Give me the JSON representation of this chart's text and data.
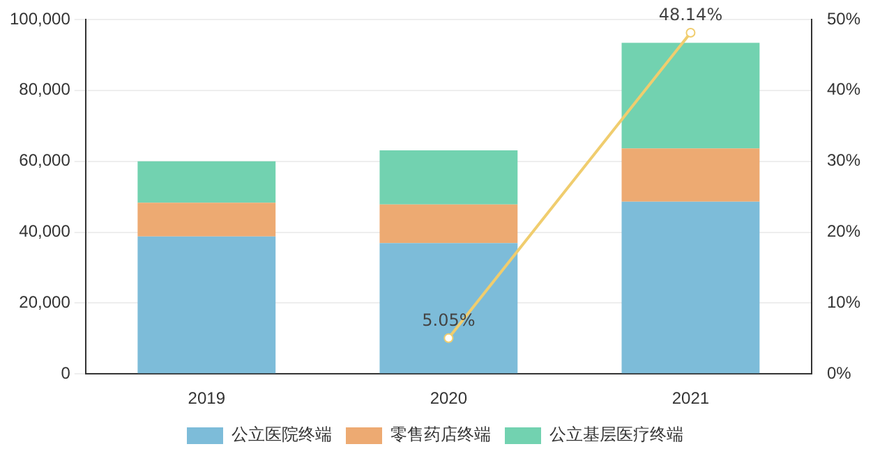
{
  "chart_data": {
    "type": "bar",
    "stacked": true,
    "categories": [
      "2019",
      "2020",
      "2021"
    ],
    "series": [
      {
        "name": "公立医院终端",
        "color": "#7dbcd9",
        "values": [
          38800,
          36900,
          48600
        ]
      },
      {
        "name": "零售药店终端",
        "color": "#edaa72",
        "values": [
          9500,
          10900,
          15000
        ]
      },
      {
        "name": "公立基层医疗终端",
        "color": "#72d2b0",
        "values": [
          11700,
          15300,
          29800
        ]
      },
      {
        "type": "line",
        "axis": "y2",
        "color": "#f0cd6e",
        "values": [
          null,
          5.05,
          48.14
        ],
        "value_labels": [
          null,
          "5.05%",
          "48.14%"
        ]
      }
    ],
    "ylim": [
      0,
      100000
    ],
    "yticks": [
      0,
      {
        "value": 20000,
        "label": "20,000"
      },
      {
        "value": 40000,
        "label": "40,000"
      },
      {
        "value": 60000,
        "label": "60,000"
      },
      {
        "value": 80000,
        "label": "80,000"
      },
      {
        "value": 100000,
        "label": "100,000"
      }
    ],
    "y2lim": [
      0,
      50
    ],
    "y2ticks": [
      {
        "value": 0,
        "label": "0%"
      },
      {
        "value": 10,
        "label": "10%"
      },
      {
        "value": 20,
        "label": "20%"
      },
      {
        "value": 30,
        "label": "30%"
      },
      {
        "value": 40,
        "label": "40%"
      },
      {
        "value": 50,
        "label": "50%"
      }
    ],
    "grid": "y",
    "legend": "bottom",
    "marker": "circle"
  }
}
